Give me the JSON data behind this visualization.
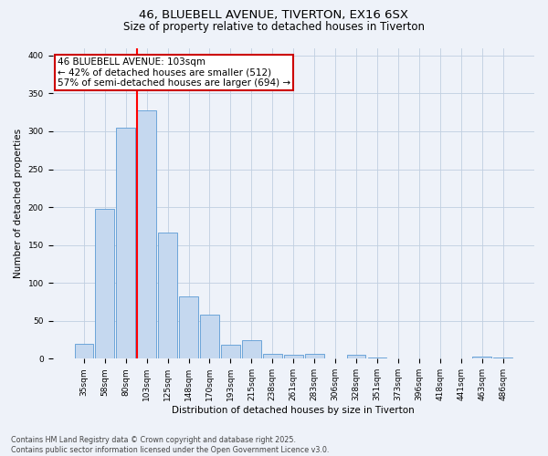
{
  "title_line1": "46, BLUEBELL AVENUE, TIVERTON, EX16 6SX",
  "title_line2": "Size of property relative to detached houses in Tiverton",
  "xlabel": "Distribution of detached houses by size in Tiverton",
  "ylabel": "Number of detached properties",
  "categories": [
    "35sqm",
    "58sqm",
    "80sqm",
    "103sqm",
    "125sqm",
    "148sqm",
    "170sqm",
    "193sqm",
    "215sqm",
    "238sqm",
    "261sqm",
    "283sqm",
    "306sqm",
    "328sqm",
    "351sqm",
    "373sqm",
    "396sqm",
    "418sqm",
    "441sqm",
    "463sqm",
    "486sqm"
  ],
  "values": [
    20,
    198,
    305,
    328,
    167,
    82,
    58,
    19,
    25,
    7,
    5,
    7,
    0,
    5,
    2,
    0,
    0,
    0,
    0,
    3,
    2
  ],
  "bar_color": "#c5d8ef",
  "bar_edge_color": "#5b9bd5",
  "red_line_index": 3,
  "annotation_text": "46 BLUEBELL AVENUE: 103sqm\n← 42% of detached houses are smaller (512)\n57% of semi-detached houses are larger (694) →",
  "annotation_box_edge": "#cc0000",
  "annotation_text_fontsize": 7.5,
  "background_color": "#eef2f9",
  "plot_bg_color": "#eef2f9",
  "ylim": [
    0,
    410
  ],
  "yticks": [
    0,
    50,
    100,
    150,
    200,
    250,
    300,
    350,
    400
  ],
  "footer_line1": "Contains HM Land Registry data © Crown copyright and database right 2025.",
  "footer_line2": "Contains public sector information licensed under the Open Government Licence v3.0.",
  "grid_color": "#c0cfe0",
  "title_fontsize": 9.5,
  "subtitle_fontsize": 8.5,
  "tick_fontsize": 6.5,
  "axis_label_fontsize": 7.5,
  "footer_fontsize": 5.8
}
